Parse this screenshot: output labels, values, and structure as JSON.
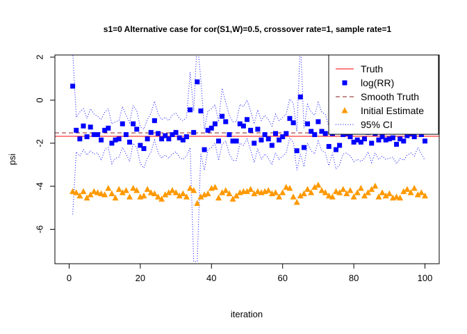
{
  "chart_data": {
    "type": "scatter",
    "title": "s1=0 Alternative case for cor(S1,W)=0.5, crossover rate=1, sample rate=1",
    "xlabel": "iteration",
    "ylabel": "psi",
    "xlim": [
      -4,
      104
    ],
    "ylim": [
      -7.6,
      2.1
    ],
    "xticks": [
      0,
      20,
      40,
      60,
      80,
      100
    ],
    "yticks": [
      -6,
      -4,
      -2,
      0,
      2
    ],
    "grid": false,
    "legend_position": "top-right",
    "truth": -1.68,
    "smooth_truth": -1.52,
    "legend": [
      {
        "label": "Truth",
        "symbol": "line",
        "color": "#ff0000"
      },
      {
        "label": "log(RR)",
        "symbol": "square",
        "color": "#0000ff"
      },
      {
        "label": "Smooth Truth",
        "symbol": "dashed",
        "color": "#8b1a1a"
      },
      {
        "label": "Initial Estimate",
        "symbol": "triangle",
        "color": "#ff9900"
      },
      {
        "label": "95% CI",
        "symbol": "dotted",
        "color": "#0000ff"
      }
    ],
    "x": [
      1,
      2,
      3,
      4,
      5,
      6,
      7,
      8,
      9,
      10,
      11,
      12,
      13,
      14,
      15,
      16,
      17,
      18,
      19,
      20,
      21,
      22,
      23,
      24,
      25,
      26,
      27,
      28,
      29,
      30,
      31,
      32,
      33,
      34,
      35,
      36,
      37,
      38,
      39,
      40,
      41,
      42,
      43,
      44,
      45,
      46,
      47,
      48,
      49,
      50,
      51,
      52,
      53,
      54,
      55,
      56,
      57,
      58,
      59,
      60,
      61,
      62,
      63,
      64,
      65,
      66,
      67,
      68,
      69,
      70,
      71,
      72,
      73,
      74,
      75,
      76,
      77,
      78,
      79,
      80,
      81,
      82,
      83,
      84,
      85,
      86,
      87,
      88,
      89,
      90,
      91,
      92,
      93,
      94,
      95,
      96,
      97,
      98,
      99,
      100
    ],
    "log_rr": [
      0.65,
      -1.4,
      -1.8,
      -1.2,
      -1.7,
      -1.25,
      -1.6,
      -1.6,
      -1.85,
      -1.4,
      -1.3,
      -2.0,
      -1.85,
      -1.8,
      -1.1,
      -1.6,
      -1.95,
      -1.1,
      -1.35,
      -2.1,
      -2.25,
      -1.8,
      -1.5,
      -0.95,
      -1.55,
      -1.8,
      -1.65,
      -1.8,
      -1.6,
      -1.5,
      -1.75,
      -1.85,
      -1.7,
      -0.45,
      -1.5,
      0.85,
      -0.5,
      -2.3,
      -1.4,
      -1.3,
      -1.1,
      -1.9,
      -0.75,
      -1.0,
      -1.6,
      -1.9,
      -1.9,
      -1.1,
      -1.2,
      -0.9,
      -1.4,
      -2.0,
      -1.35,
      -1.85,
      -1.6,
      -1.8,
      -2.1,
      -1.55,
      -1.85,
      -1.7,
      -1.55,
      -0.85,
      -1.05,
      -2.35,
      0.15,
      -2.2,
      -1.1,
      -1.45,
      -1.6,
      -1.0,
      -1.45,
      -1.55,
      -2.15,
      -1.55,
      -2.3,
      -2.1,
      -1.6,
      -1.55,
      -1.7,
      -1.95,
      -1.85,
      -1.95,
      -1.8,
      -1.5,
      -2.0,
      -1.55,
      -1.85,
      -1.7,
      -1.85,
      -1.8,
      -1.75,
      -2.05,
      -1.8,
      -1.9,
      -1.65,
      -1.55,
      -1.7,
      -1.3,
      -1.6,
      -1.9
    ],
    "initial_estimate": [
      -4.25,
      -4.3,
      -4.45,
      -4.25,
      -4.55,
      -4.4,
      -4.25,
      -4.3,
      -4.35,
      -4.4,
      -4.1,
      -4.35,
      -4.55,
      -4.15,
      -4.3,
      -4.2,
      -4.5,
      -4.1,
      -4.2,
      -4.5,
      -4.45,
      -4.15,
      -4.3,
      -4.35,
      -4.5,
      -4.6,
      -4.4,
      -4.3,
      -4.2,
      -4.3,
      -4.45,
      -4.35,
      -4.5,
      -4.1,
      -4.2,
      -4.8,
      -4.5,
      -4.4,
      -4.35,
      -4.1,
      -4.05,
      -4.55,
      -4.3,
      -4.2,
      -4.35,
      -4.6,
      -4.45,
      -4.3,
      -4.25,
      -4.25,
      -4.15,
      -4.35,
      -4.25,
      -4.3,
      -4.25,
      -4.2,
      -4.35,
      -4.3,
      -4.5,
      -4.3,
      -4.05,
      -4.1,
      -4.5,
      -4.75,
      -4.45,
      -4.35,
      -4.15,
      -4.3,
      -4.05,
      -3.95,
      -4.2,
      -4.3,
      -4.45,
      -4.5,
      -4.25,
      -4.3,
      -4.15,
      -4.35,
      -4.2,
      -4.5,
      -4.3,
      -4.1,
      -4.45,
      -4.3,
      -4.15,
      -4.0,
      -4.5,
      -4.3,
      -4.45,
      -4.35,
      -4.55,
      -4.5,
      -4.55,
      -4.25,
      -4.15,
      -4.3,
      -4.1,
      -4.4,
      -4.3,
      -4.45
    ],
    "ci_upper": [
      2.3,
      -0.8,
      -0.55,
      -0.4,
      -0.85,
      -0.4,
      -0.65,
      -0.75,
      -0.9,
      -0.55,
      -0.4,
      -1.1,
      -1.0,
      -0.95,
      -0.3,
      -0.7,
      -1.05,
      -0.25,
      -0.5,
      -1.25,
      -1.35,
      -0.9,
      -0.6,
      -0.05,
      -0.65,
      -0.9,
      -0.8,
      -0.95,
      -0.7,
      -0.6,
      -0.85,
      -0.95,
      -0.8,
      1.3,
      -0.5,
      2.8,
      1.0,
      -1.35,
      -0.5,
      -0.4,
      -0.2,
      -1.0,
      0.55,
      -0.1,
      -0.7,
      -1.0,
      -1.0,
      -0.2,
      -0.3,
      0.0,
      -0.5,
      -1.1,
      -0.45,
      -0.95,
      -0.7,
      -0.9,
      -1.2,
      -0.65,
      -0.95,
      -0.8,
      -0.65,
      0.05,
      -0.15,
      -1.45,
      2.8,
      -1.3,
      -0.2,
      -0.55,
      -0.7,
      -0.1,
      -0.55,
      -0.65,
      -1.25,
      -0.65,
      -1.4,
      -1.2,
      -0.7,
      -0.65,
      -0.8,
      -1.05,
      -0.95,
      -1.05,
      -0.9,
      -0.6,
      -1.1,
      -0.65,
      -0.95,
      -0.8,
      -0.95,
      -0.9,
      -0.85,
      -1.15,
      -0.9,
      -1.0,
      -0.75,
      -0.65,
      -0.8,
      -0.4,
      -0.7,
      -1.0
    ],
    "ci_lower": [
      -5.3,
      -2.4,
      -2.6,
      -2.3,
      -2.55,
      -2.35,
      -2.5,
      -2.45,
      -2.8,
      -2.3,
      -2.2,
      -2.95,
      -2.7,
      -2.65,
      -2.2,
      -2.5,
      -2.85,
      -2.0,
      -2.2,
      -2.95,
      -3.15,
      -2.7,
      -2.4,
      -1.85,
      -2.45,
      -2.7,
      -2.55,
      -2.7,
      -2.5,
      -2.4,
      -2.65,
      -2.75,
      -2.6,
      -2.2,
      -7.5,
      -7.5,
      -2.5,
      -3.25,
      -2.3,
      -2.2,
      -2.0,
      -2.8,
      -2.05,
      -1.9,
      -2.5,
      -2.8,
      -2.8,
      -2.0,
      -2.1,
      -1.8,
      -2.3,
      -2.9,
      -2.25,
      -2.75,
      -2.5,
      -2.7,
      -3.0,
      -2.45,
      -2.75,
      -2.6,
      -2.45,
      -1.75,
      -1.95,
      -3.25,
      -2.5,
      -3.1,
      -2.0,
      -2.35,
      -2.5,
      -1.9,
      -2.35,
      -2.45,
      -3.05,
      -2.45,
      -3.2,
      -3.0,
      -2.5,
      -2.45,
      -2.6,
      -2.85,
      -2.75,
      -2.85,
      -2.7,
      -2.4,
      -2.9,
      -2.45,
      -2.75,
      -2.6,
      -2.75,
      -2.7,
      -2.65,
      -2.95,
      -2.7,
      -2.8,
      -2.55,
      -2.45,
      -2.6,
      -2.2,
      -2.5,
      -2.8
    ]
  }
}
